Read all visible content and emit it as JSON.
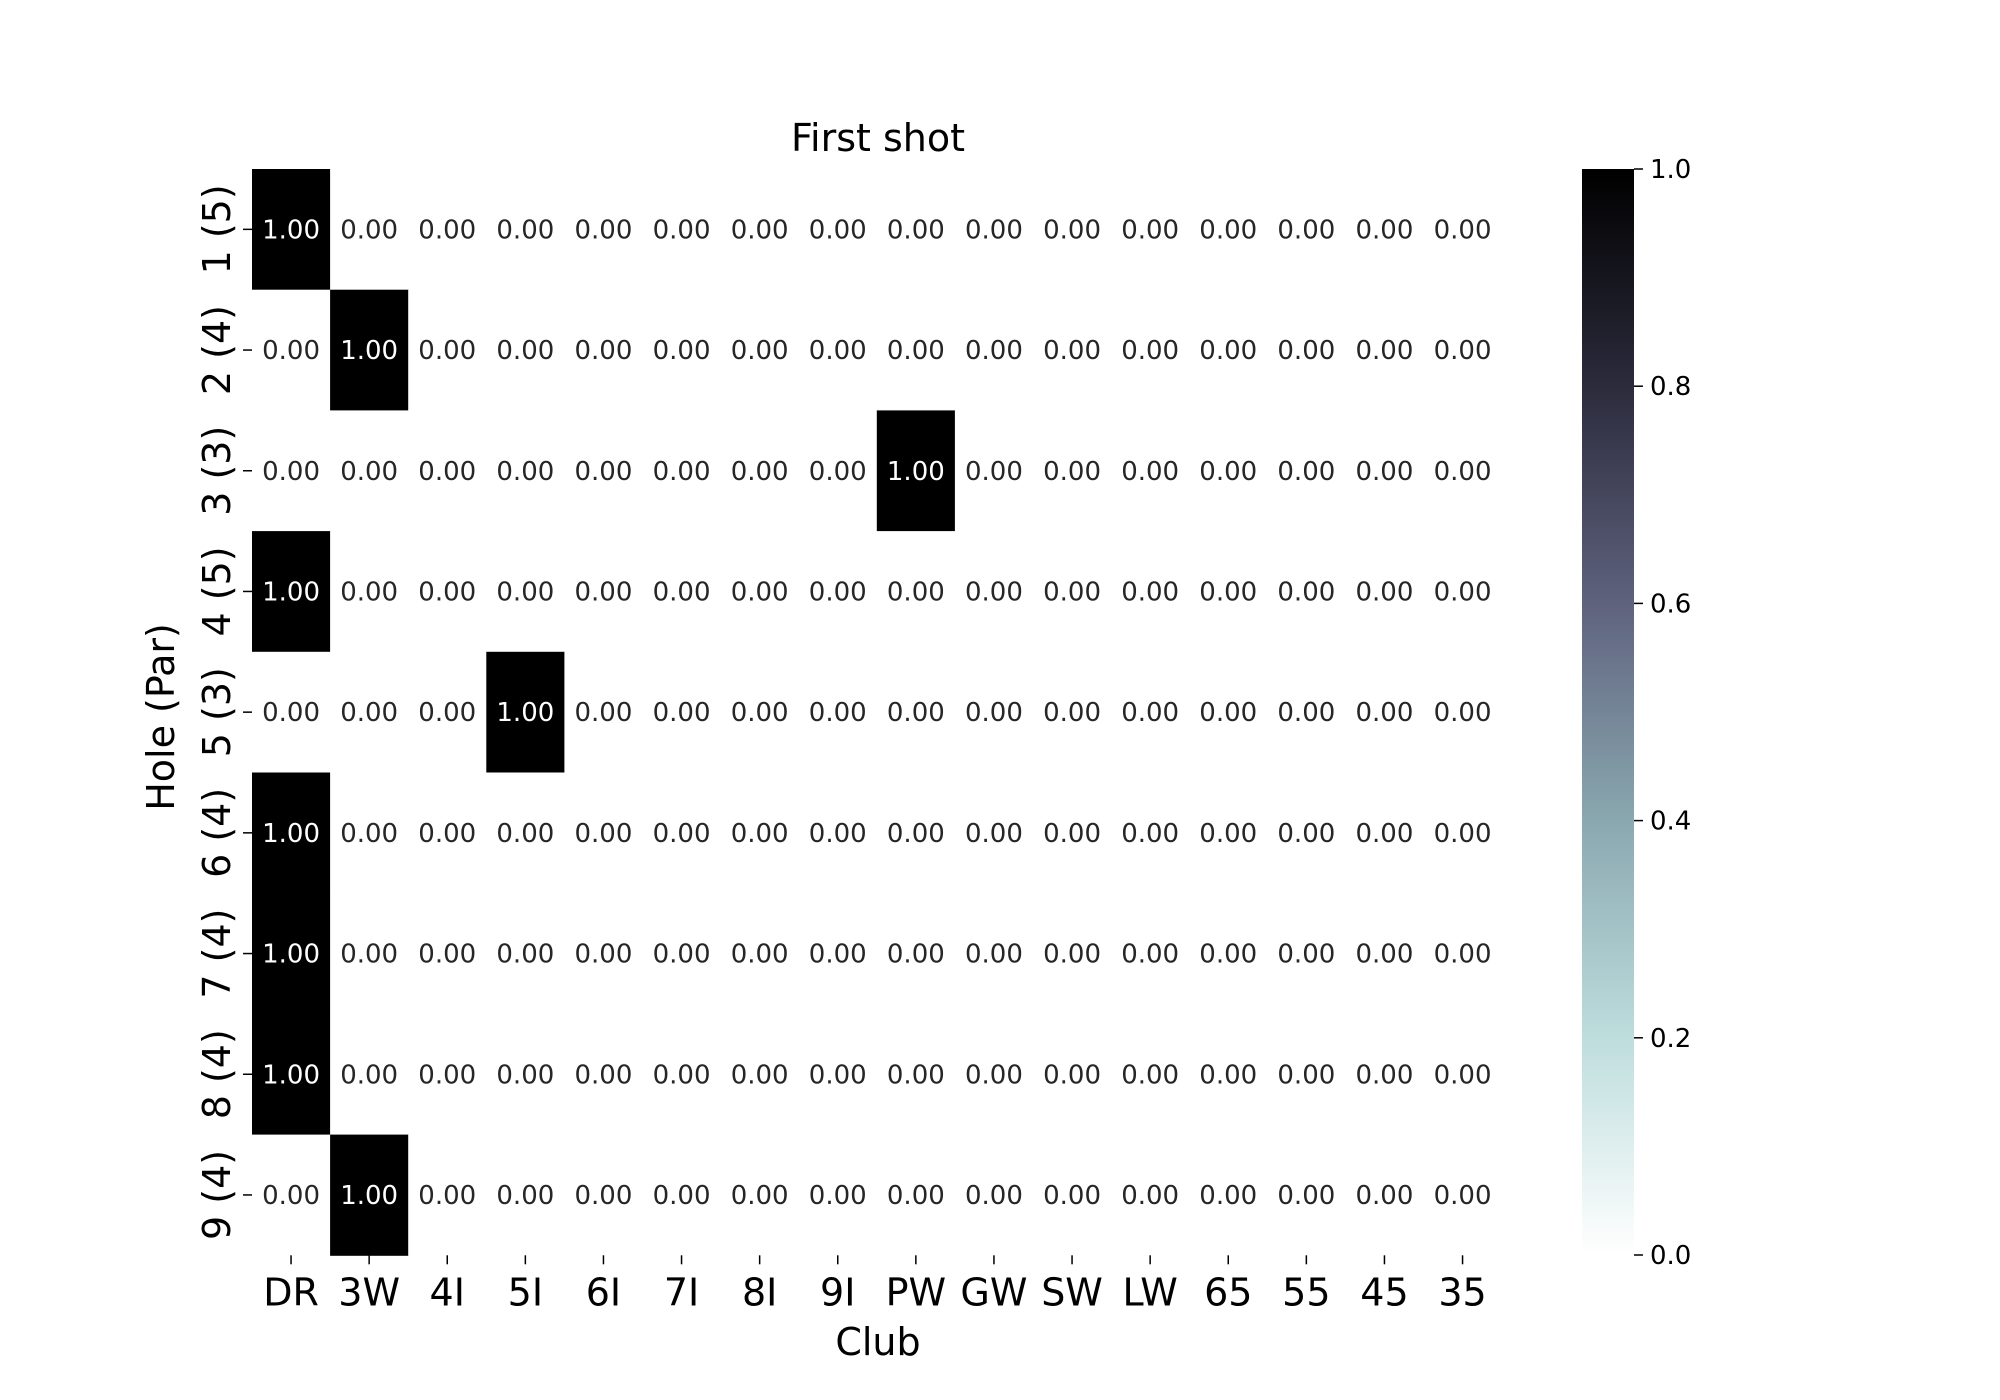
{
  "chart_data": {
    "type": "heatmap",
    "title": "First shot",
    "xlabel": "Club",
    "ylabel": "Hole (Par)",
    "x_categories": [
      "DR",
      "3W",
      "4I",
      "5I",
      "6I",
      "7I",
      "8I",
      "9I",
      "PW",
      "GW",
      "SW",
      "LW",
      "65",
      "55",
      "45",
      "35"
    ],
    "y_categories": [
      "1 (5)",
      "2 (4)",
      "3 (3)",
      "4 (5)",
      "5 (3)",
      "6 (4)",
      "7 (4)",
      "8 (4)",
      "9 (4)"
    ],
    "values": [
      [
        1,
        0,
        0,
        0,
        0,
        0,
        0,
        0,
        0,
        0,
        0,
        0,
        0,
        0,
        0,
        0
      ],
      [
        0,
        1,
        0,
        0,
        0,
        0,
        0,
        0,
        0,
        0,
        0,
        0,
        0,
        0,
        0,
        0
      ],
      [
        0,
        0,
        0,
        0,
        0,
        0,
        0,
        0,
        1,
        0,
        0,
        0,
        0,
        0,
        0,
        0
      ],
      [
        1,
        0,
        0,
        0,
        0,
        0,
        0,
        0,
        0,
        0,
        0,
        0,
        0,
        0,
        0,
        0
      ],
      [
        0,
        0,
        0,
        1,
        0,
        0,
        0,
        0,
        0,
        0,
        0,
        0,
        0,
        0,
        0,
        0
      ],
      [
        1,
        0,
        0,
        0,
        0,
        0,
        0,
        0,
        0,
        0,
        0,
        0,
        0,
        0,
        0,
        0
      ],
      [
        1,
        0,
        0,
        0,
        0,
        0,
        0,
        0,
        0,
        0,
        0,
        0,
        0,
        0,
        0,
        0
      ],
      [
        1,
        0,
        0,
        0,
        0,
        0,
        0,
        0,
        0,
        0,
        0,
        0,
        0,
        0,
        0,
        0
      ],
      [
        0,
        1,
        0,
        0,
        0,
        0,
        0,
        0,
        0,
        0,
        0,
        0,
        0,
        0,
        0,
        0
      ]
    ],
    "value_format": "2 decimals",
    "colormap": "bone_r",
    "colorbar": {
      "range": [
        0.0,
        1.0
      ],
      "ticks": [
        "0.0",
        "0.2",
        "0.4",
        "0.6",
        "0.8",
        "1.0"
      ],
      "colors": [
        "#ffffff",
        "#bedddd",
        "#8aa8b0",
        "#5f627e",
        "#2b2b3c",
        "#000000"
      ]
    },
    "annotation_colors": {
      "on_dark": "#ffffff",
      "on_light": "#262626"
    }
  }
}
